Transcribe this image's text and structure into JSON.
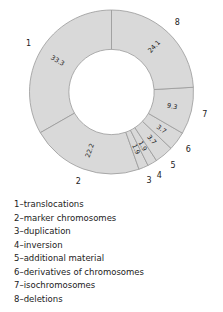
{
  "chart_data": {
    "type": "donut",
    "categories": [
      "1",
      "2",
      "3",
      "4",
      "5",
      "6",
      "7",
      "8"
    ],
    "values": [
      33.3,
      22.2,
      1.9,
      1.9,
      3.7,
      3.7,
      9.3,
      24.1
    ],
    "colors": [
      "#d9d9d9",
      "#d9d9d9",
      "#d9d9d9",
      "#d9d9d9",
      "#d9d9d9",
      "#d9d9d9",
      "#d9d9d9",
      "#d9d9d9"
    ],
    "data_labels": true,
    "annotations": [
      "1–translocations",
      "2–marker chromosomes",
      "3–duplication",
      "4–inversion",
      "5–additional material",
      "6–derivatives of chromosomes",
      "7–isochromosomes",
      "8–deletions"
    ]
  }
}
